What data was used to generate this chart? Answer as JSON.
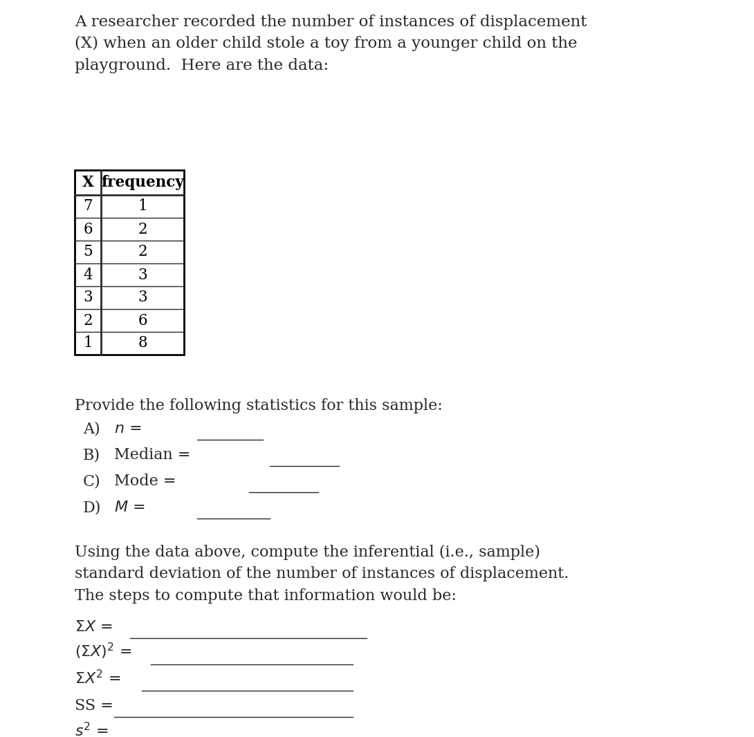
{
  "title_text": "A researcher recorded the number of instances of displacement\n(X) when an older child stole a toy from a younger child on the\nplayground.  Here are the data:",
  "table_x_vals": [
    7,
    6,
    5,
    4,
    3,
    2,
    1
  ],
  "table_freq_vals": [
    1,
    2,
    2,
    3,
    3,
    6,
    8
  ],
  "section2_text": "Provide the following statistics for this sample:",
  "section3_text": "Using the data above, compute the inferential (i.e., sample)\nstandard deviation of the number of instances of displacement.\nThe steps to compute that information would be:",
  "bg_color": "#ffffff",
  "text_color": "#2a2a2a",
  "font_size_title": 16.5,
  "font_size_body": 16.0,
  "font_size_table_header": 15.5,
  "font_size_table_data": 15.5
}
